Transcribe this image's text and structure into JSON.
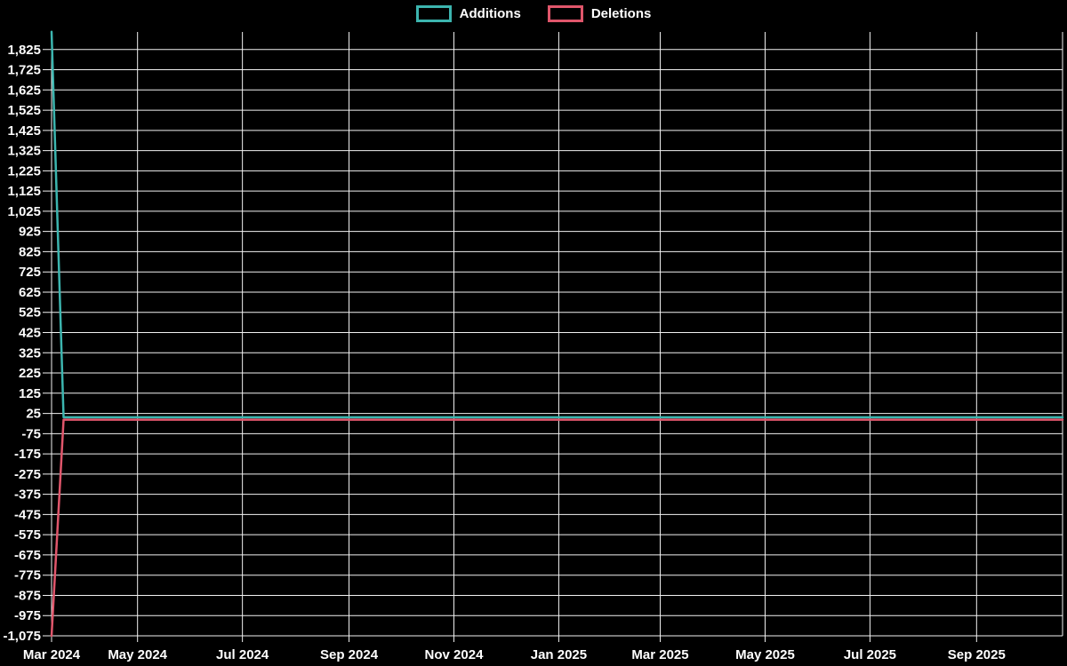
{
  "page": {
    "background": "#000000",
    "text_color": "#ffffff",
    "grid_color": "#f2f2f2"
  },
  "legend": {
    "items": [
      {
        "label": "Additions",
        "color": "#3cb5af"
      },
      {
        "label": "Deletions",
        "color": "#e0566b"
      }
    ]
  },
  "chart_data": {
    "type": "line",
    "title": "",
    "xlabel": "",
    "ylabel": "",
    "legend_position": "top-center",
    "grid": true,
    "background": "#000000",
    "x_axis": {
      "kind": "time",
      "start": "2024-03-12",
      "end": "2025-10-21",
      "ticks": [
        {
          "label": "Mar 2024",
          "date": "2024-03-12"
        },
        {
          "label": "May 2024",
          "date": "2024-05-01"
        },
        {
          "label": "Jul 2024",
          "date": "2024-07-01"
        },
        {
          "label": "Sep 2024",
          "date": "2024-09-01"
        },
        {
          "label": "Nov 2024",
          "date": "2024-11-01"
        },
        {
          "label": "Jan 2025",
          "date": "2025-01-01"
        },
        {
          "label": "Mar 2025",
          "date": "2025-03-01"
        },
        {
          "label": "May 2025",
          "date": "2025-05-01"
        },
        {
          "label": "Jul 2025",
          "date": "2025-07-01"
        },
        {
          "label": "Sep 2025",
          "date": "2025-09-01"
        }
      ]
    },
    "y_axis": {
      "min": -1075,
      "max": 1925,
      "tick_step": 100,
      "tick_values": [
        1825,
        1725,
        1625,
        1525,
        1425,
        1325,
        1225,
        1125,
        1025,
        925,
        825,
        725,
        625,
        525,
        425,
        325,
        225,
        125,
        25,
        -75,
        -175,
        -275,
        -375,
        -475,
        -575,
        -675,
        -775,
        -875,
        -975,
        -1075
      ]
    },
    "series": [
      {
        "name": "Deletions",
        "color": "#e0566b",
        "points": [
          [
            "2024-03-12",
            -1075
          ],
          [
            "2024-03-19",
            -6
          ],
          [
            "2025-10-21",
            -6
          ]
        ]
      },
      {
        "name": "Additions",
        "color": "#3cb5af",
        "points": [
          [
            "2024-03-12",
            1913
          ],
          [
            "2024-03-19",
            6
          ],
          [
            "2025-10-21",
            6
          ]
        ]
      }
    ]
  }
}
